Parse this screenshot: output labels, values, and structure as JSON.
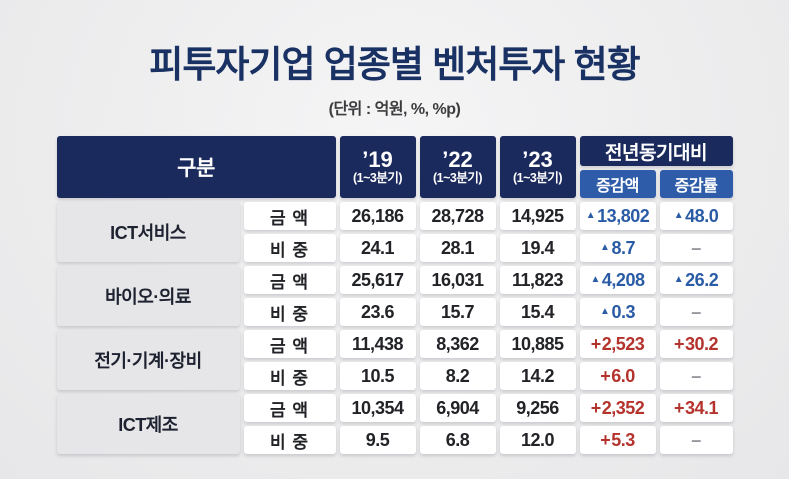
{
  "title": "피투자기업 업종별 벤처투자 현황",
  "unit_note": "(단위 : 억원, %, %p)",
  "colors": {
    "title_navy": "#1a3263",
    "header_navy": "#1b2a5c",
    "header_light_blue": "#2e5ca8",
    "decrease_blue": "#2a5ca6",
    "increase_red": "#b5332d",
    "category_gray": "#e6e6e8",
    "page_background": "#ededee"
  },
  "table": {
    "header": {
      "category": "구분",
      "years": [
        {
          "label": "’19",
          "period": "(1~3분기)"
        },
        {
          "label": "’22",
          "period": "(1~3분기)"
        },
        {
          "label": "’23",
          "period": "(1~3분기)"
        }
      ],
      "yoy": "전년동기대비",
      "yoy_amount": "증감액",
      "yoy_rate": "증감률"
    },
    "rows": [
      {
        "category": "ICT서비스",
        "metrics": [
          {
            "label": "금 액",
            "v19": "26,186",
            "v22": "28,728",
            "v23": "14,925",
            "delta_prefix": "▲",
            "delta_value": "13,802",
            "rate_prefix": "▲",
            "rate_value": "48.0",
            "trend": "decrease"
          },
          {
            "label": "비 중",
            "v19": "24.1",
            "v22": "28.1",
            "v23": "19.4",
            "delta_prefix": "▲",
            "delta_value": "8.7",
            "rate_prefix": "",
            "rate_value": "–",
            "trend": "decrease"
          }
        ]
      },
      {
        "category": "바이오·의료",
        "metrics": [
          {
            "label": "금 액",
            "v19": "25,617",
            "v22": "16,031",
            "v23": "11,823",
            "delta_prefix": "▲",
            "delta_value": "4,208",
            "rate_prefix": "▲",
            "rate_value": "26.2",
            "trend": "decrease"
          },
          {
            "label": "비 중",
            "v19": "23.6",
            "v22": "15.7",
            "v23": "15.4",
            "delta_prefix": "▲",
            "delta_value": "0.3",
            "rate_prefix": "",
            "rate_value": "–",
            "trend": "decrease"
          }
        ]
      },
      {
        "category": "전기·기계·장비",
        "metrics": [
          {
            "label": "금 액",
            "v19": "11,438",
            "v22": "8,362",
            "v23": "10,885",
            "delta_prefix": "+",
            "delta_value": "2,523",
            "rate_prefix": "+",
            "rate_value": "30.2",
            "trend": "increase"
          },
          {
            "label": "비 중",
            "v19": "10.5",
            "v22": "8.2",
            "v23": "14.2",
            "delta_prefix": "+",
            "delta_value": "6.0",
            "rate_prefix": "",
            "rate_value": "–",
            "trend": "increase"
          }
        ]
      },
      {
        "category": "ICT제조",
        "metrics": [
          {
            "label": "금 액",
            "v19": "10,354",
            "v22": "6,904",
            "v23": "9,256",
            "delta_prefix": "+",
            "delta_value": "2,352",
            "rate_prefix": "+",
            "rate_value": "34.1",
            "trend": "increase"
          },
          {
            "label": "비 중",
            "v19": "9.5",
            "v22": "6.8",
            "v23": "12.0",
            "delta_prefix": "+",
            "delta_value": "5.3",
            "rate_prefix": "",
            "rate_value": "–",
            "trend": "increase"
          }
        ]
      }
    ]
  }
}
